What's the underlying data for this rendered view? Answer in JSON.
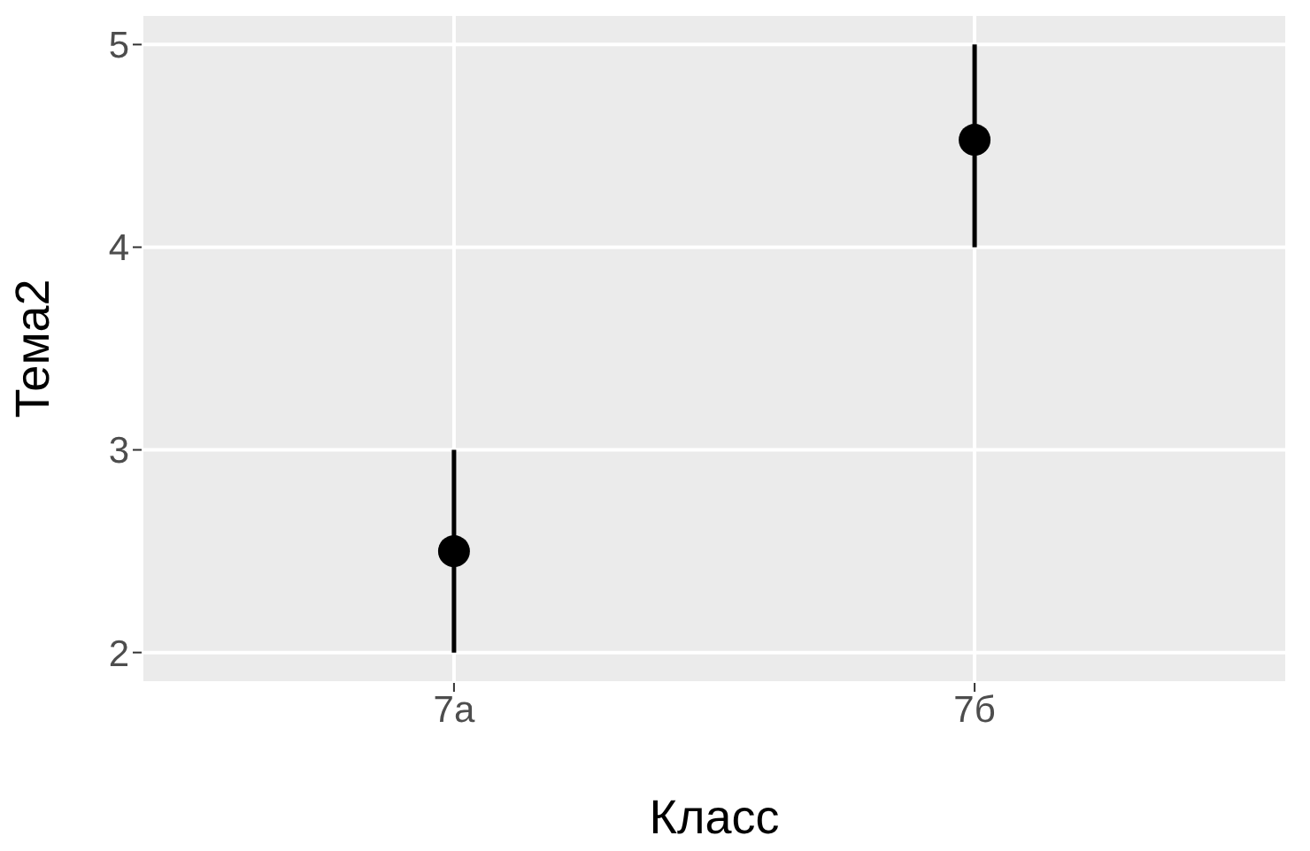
{
  "chart_data": {
    "type": "scatter",
    "xlabel": "Класс",
    "ylabel": "Тема2",
    "categories": [
      "7а",
      "7б"
    ],
    "values": [
      2.5,
      4.53
    ],
    "errors": [
      [
        2,
        3
      ],
      [
        4,
        5
      ]
    ],
    "color": "#000000",
    "ylim": [
      1.85,
      5.15
    ],
    "yticks": [
      2,
      3,
      4,
      5
    ],
    "grid": true,
    "marker": "circle"
  }
}
